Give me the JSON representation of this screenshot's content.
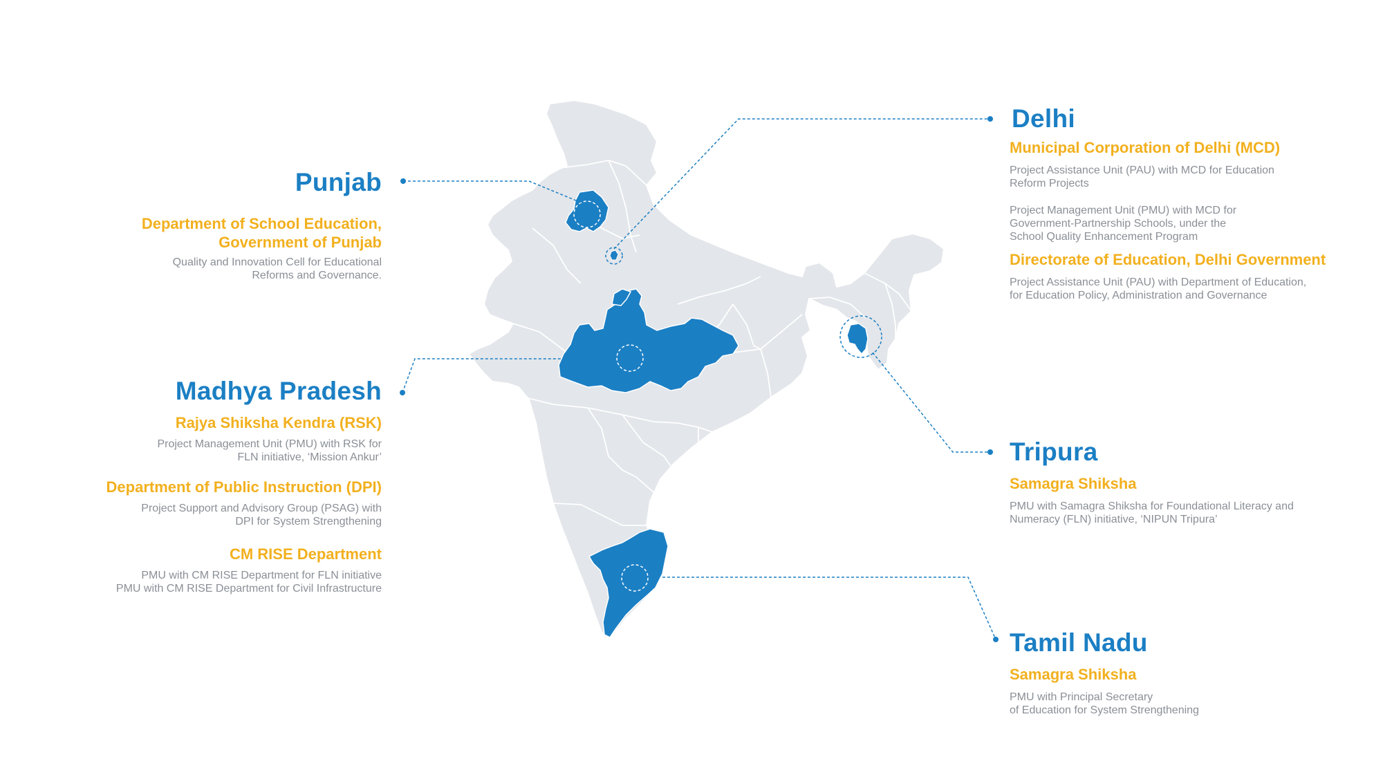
{
  "colors": {
    "highlight": "#1b7fc4",
    "org_text": "#f2b01e",
    "desc_text": "#8a8f96",
    "land": "#e3e6ea",
    "border": "#ffffff",
    "connector": "#1b7fc4"
  },
  "states": {
    "punjab": {
      "name": "Punjab",
      "entries": [
        {
          "org": "Department of School Education,\nGovernment of Punjab",
          "desc": "Quality and Innovation Cell for Educational\nReforms and Governance."
        }
      ]
    },
    "madhya_pradesh": {
      "name": "Madhya Pradesh",
      "entries": [
        {
          "org": "Rajya Shiksha Kendra (RSK)",
          "desc": "Project Management Unit (PMU) with RSK for\nFLN initiative, ‘Mission Ankur’"
        },
        {
          "org": "Department of Public Instruction (DPI)",
          "desc": "Project Support and Advisory Group (PSAG) with\nDPI for System Strengthening"
        },
        {
          "org": "CM RISE Department",
          "desc": "PMU with CM RISE Department for FLN initiative\nPMU with CM RISE Department for Civil Infrastructure"
        }
      ]
    },
    "delhi": {
      "name": "Delhi",
      "entries": [
        {
          "org": "Municipal Corporation of Delhi (MCD)",
          "desc": "Project Assistance Unit (PAU) with MCD for Education\nReform Projects",
          "desc2": "Project Management Unit (PMU) with MCD for\nGovernment-Partnership Schools, under the\nSchool Quality Enhancement Program"
        },
        {
          "org": "Directorate of Education, Delhi Government",
          "desc": "Project Assistance Unit (PAU) with Department of Education,\nfor Education Policy, Administration and Governance"
        }
      ]
    },
    "tripura": {
      "name": "Tripura",
      "entries": [
        {
          "org": "Samagra Shiksha",
          "desc": "PMU with Samagra Shiksha for Foundational Literacy and\nNumeracy (FLN) initiative, ‘NIPUN Tripura’"
        }
      ]
    },
    "tamil_nadu": {
      "name": "Tamil Nadu",
      "entries": [
        {
          "org": "Samagra Shiksha",
          "desc": "PMU with Principal Secretary\nof Education for System Strengthening"
        }
      ]
    }
  }
}
